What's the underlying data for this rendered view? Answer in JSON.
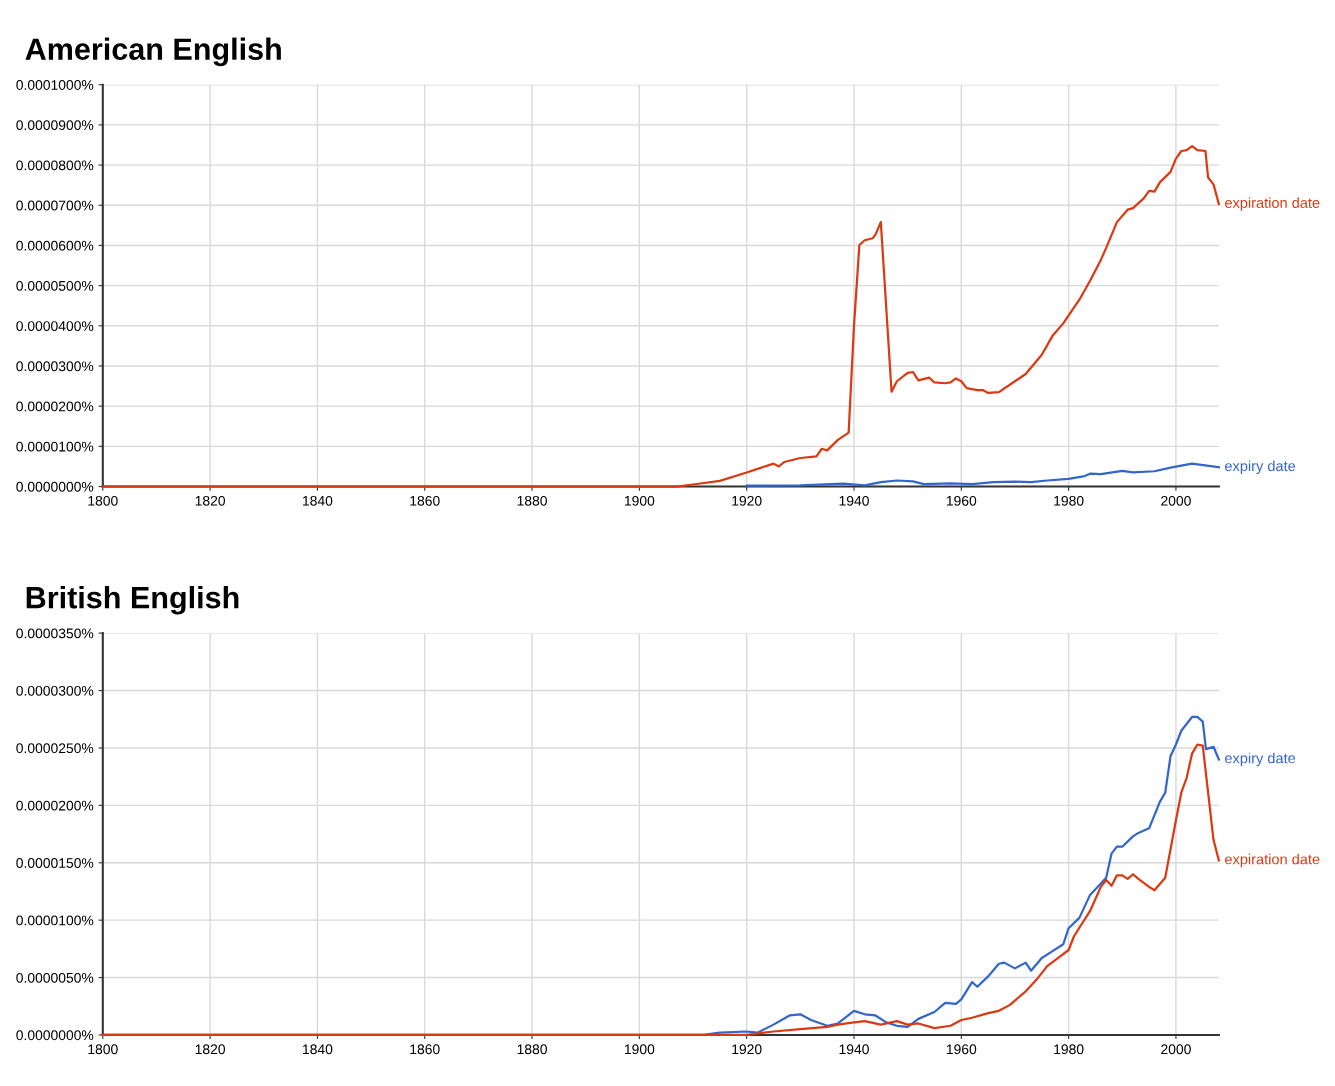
{
  "chart_data": [
    {
      "type": "line",
      "title": "American English",
      "xlim": [
        1800,
        2008
      ],
      "ylim": [
        0,
        0.0001
      ],
      "xticks": [
        1800,
        1820,
        1840,
        1860,
        1880,
        1900,
        1920,
        1940,
        1960,
        1980,
        2000
      ],
      "yticks": [
        {
          "value": 0,
          "label": "0.0000000%"
        },
        {
          "value": 1e-05,
          "label": "0.0000100%"
        },
        {
          "value": 2e-05,
          "label": "0.0000200%"
        },
        {
          "value": 3e-05,
          "label": "0.0000300%"
        },
        {
          "value": 4e-05,
          "label": "0.0000400%"
        },
        {
          "value": 5e-05,
          "label": "0.0000500%"
        },
        {
          "value": 6e-05,
          "label": "0.0000600%"
        },
        {
          "value": 7e-05,
          "label": "0.0000700%"
        },
        {
          "value": 8e-05,
          "label": "0.0000800%"
        },
        {
          "value": 9e-05,
          "label": "0.0000900%"
        },
        {
          "value": 0.0001,
          "label": "0.0001000%"
        }
      ],
      "grid": true,
      "legend": false,
      "marker": "none",
      "line_style": "solid",
      "series": [
        {
          "name": "expiration date",
          "color": "#dc3912",
          "x": [
            1800,
            1907,
            1910,
            1915,
            1920,
            1925,
            1926,
            1927,
            1930,
            1933,
            1934,
            1935,
            1937,
            1939,
            1940,
            1941,
            1942,
            1943.5,
            1944,
            1945,
            1947,
            1948,
            1950,
            1951,
            1952,
            1954,
            1955,
            1957,
            1958,
            1959,
            1960,
            1961,
            1963,
            1964,
            1965,
            1967,
            1970,
            1972,
            1975,
            1977,
            1979,
            1982,
            1984,
            1986,
            1987,
            1989,
            1991,
            1992,
            1994,
            1995,
            1996,
            1997,
            1999,
            2000,
            2001,
            2002,
            2003,
            2004,
            2005.5,
            2006,
            2007,
            2008
          ],
          "values": [
            0,
            0,
            5e-07,
            1.4e-06,
            3.5e-06,
            5.7e-06,
            5e-06,
            6.1e-06,
            7.1e-06,
            7.5e-06,
            9.4e-06,
            9e-06,
            1.16e-05,
            1.34e-05,
            4e-05,
            6.01e-05,
            6.13e-05,
            6.18e-05,
            6.27e-05,
            6.58e-05,
            2.36e-05,
            2.62e-05,
            2.83e-05,
            2.85e-05,
            2.64e-05,
            2.71e-05,
            2.59e-05,
            2.57e-05,
            2.59e-05,
            2.69e-05,
            2.62e-05,
            2.45e-05,
            2.4e-05,
            2.4e-05,
            2.33e-05,
            2.35e-05,
            2.62e-05,
            2.8e-05,
            3.28e-05,
            3.75e-05,
            4.06e-05,
            4.65e-05,
            5.12e-05,
            5.64e-05,
            5.94e-05,
            6.58e-05,
            6.89e-05,
            6.93e-05,
            7.17e-05,
            7.36e-05,
            7.34e-05,
            7.57e-05,
            7.83e-05,
            8.16e-05,
            8.35e-05,
            8.37e-05,
            8.47e-05,
            8.37e-05,
            8.35e-05,
            7.69e-05,
            7.52e-05,
            7.03e-05
          ]
        },
        {
          "name": "expiry date",
          "color": "#3366cc",
          "x": [
            1920,
            1930,
            1938,
            1942,
            1945,
            1948,
            1951,
            1953,
            1958,
            1962,
            1966,
            1970,
            1973,
            1976,
            1980,
            1983,
            1984,
            1986,
            1990,
            1992,
            1996,
            1999,
            2003,
            2008
          ],
          "values": [
            2e-07,
            3e-07,
            7e-07,
            3e-07,
            1.1e-06,
            1.5e-06,
            1.3e-06,
            6e-07,
            8e-07,
            6e-07,
            1.1e-06,
            1.2e-06,
            1.1e-06,
            1.5e-06,
            1.9e-06,
            2.6e-06,
            3.2e-06,
            3.1e-06,
            3.9e-06,
            3.5e-06,
            3.8e-06,
            4.7e-06,
            5.7e-06,
            4.8e-06
          ]
        }
      ]
    },
    {
      "type": "line",
      "title": "British English",
      "xlim": [
        1800,
        2008
      ],
      "ylim": [
        0,
        3.5e-05
      ],
      "xticks": [
        1800,
        1820,
        1840,
        1860,
        1880,
        1900,
        1920,
        1940,
        1960,
        1980,
        2000
      ],
      "yticks": [
        {
          "value": 0,
          "label": "0.0000000%"
        },
        {
          "value": 5e-06,
          "label": "0.0000050%"
        },
        {
          "value": 1e-05,
          "label": "0.0000100%"
        },
        {
          "value": 1.5e-05,
          "label": "0.0000150%"
        },
        {
          "value": 2e-05,
          "label": "0.0000200%"
        },
        {
          "value": 2.5e-05,
          "label": "0.0000250%"
        },
        {
          "value": 3e-05,
          "label": "0.0000300%"
        },
        {
          "value": 3.5e-05,
          "label": "0.0000350%"
        }
      ],
      "grid": true,
      "legend": false,
      "marker": "none",
      "line_style": "solid",
      "series": [
        {
          "name": "expiry date",
          "color": "#3366cc",
          "x": [
            1800,
            1912,
            1915,
            1920,
            1922,
            1925,
            1928,
            1930,
            1932,
            1935,
            1937,
            1940,
            1942,
            1944,
            1946,
            1948,
            1950,
            1952,
            1955,
            1957,
            1959,
            1960,
            1962,
            1963,
            1965,
            1967,
            1968,
            1970,
            1972,
            1973,
            1975,
            1977,
            1979,
            1980,
            1982,
            1984,
            1986,
            1987,
            1988,
            1989,
            1990,
            1992,
            1993,
            1995,
            1997,
            1998,
            1999,
            2000,
            2001,
            2003,
            2004,
            2005,
            2005.6,
            2007,
            2008
          ],
          "values": [
            0,
            0,
            2e-07,
            3e-07,
            2e-07,
            9e-07,
            1.7e-06,
            1.8e-06,
            1.3e-06,
            8e-07,
            1e-06,
            2.1e-06,
            1.8e-06,
            1.7e-06,
            1.1e-06,
            8e-07,
            7e-07,
            1.4e-06,
            2e-06,
            2.8e-06,
            2.7e-06,
            3.1e-06,
            4.6e-06,
            4.2e-06,
            5.1e-06,
            6.2e-06,
            6.3e-06,
            5.8e-06,
            6.3e-06,
            5.6e-06,
            6.7e-06,
            7.3e-06,
            7.9e-06,
            9.3e-06,
            1.02e-05,
            1.22e-05,
            1.32e-05,
            1.37e-05,
            1.58e-05,
            1.64e-05,
            1.64e-05,
            1.73e-05,
            1.76e-05,
            1.8e-05,
            2.03e-05,
            2.11e-05,
            2.43e-05,
            2.53e-05,
            2.65e-05,
            2.77e-05,
            2.77e-05,
            2.73e-05,
            2.49e-05,
            2.51e-05,
            2.4e-05
          ]
        },
        {
          "name": "expiration date",
          "color": "#dc3912",
          "x": [
            1800,
            1920,
            1925,
            1930,
            1935,
            1937,
            1940,
            1942,
            1945,
            1948,
            1950,
            1952,
            1955,
            1958,
            1960,
            1962,
            1965,
            1967,
            1969,
            1972,
            1974,
            1976,
            1978,
            1980,
            1981,
            1984,
            1986,
            1987,
            1988,
            1989,
            1990,
            1991,
            1992,
            1993,
            1995,
            1996,
            1998,
            2000,
            2001,
            2002,
            2003,
            2004,
            2005,
            2006,
            2007,
            2008
          ],
          "values": [
            0,
            0,
            3e-07,
            5e-07,
            7e-07,
            9e-07,
            1.1e-06,
            1.2e-06,
            9e-07,
            1.2e-06,
            9e-07,
            1e-06,
            6e-07,
            8e-07,
            1.3e-06,
            1.5e-06,
            1.9e-06,
            2.1e-06,
            2.6e-06,
            3.8e-06,
            4.8e-06,
            6e-06,
            6.7e-06,
            7.4e-06,
            8.6e-06,
            1.08e-05,
            1.29e-05,
            1.35e-05,
            1.3e-05,
            1.39e-05,
            1.39e-05,
            1.36e-05,
            1.4e-05,
            1.36e-05,
            1.29e-05,
            1.26e-05,
            1.37e-05,
            1.87e-05,
            2.11e-05,
            2.24e-05,
            2.45e-05,
            2.53e-05,
            2.52e-05,
            2.11e-05,
            1.7e-05,
            1.52e-05
          ]
        }
      ]
    }
  ]
}
